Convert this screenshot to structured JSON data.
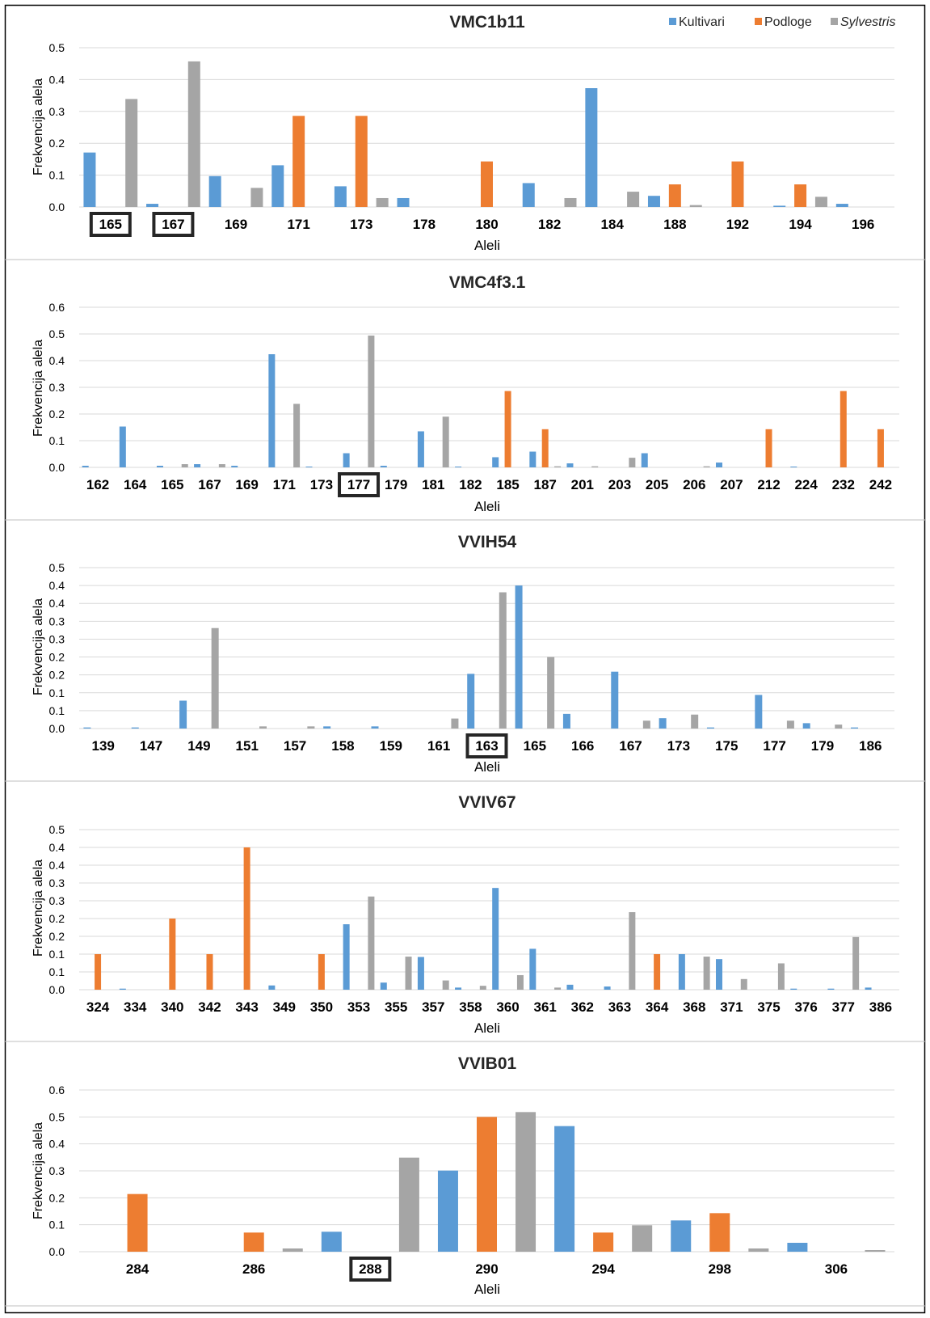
{
  "colors": {
    "Kultivari": "#5b9bd5",
    "Podloge": "#ed7d31",
    "Sylvestris": "#a5a5a5",
    "grid": "#d9d9d9",
    "frame": "#000000",
    "separator": "#bfbfbf",
    "highlight_box": "#262626"
  },
  "legend": {
    "placement": "top-right",
    "items": [
      {
        "label": "Kultivari",
        "italic": false,
        "color_key": "Kultivari"
      },
      {
        "label": "Podloge",
        "italic": false,
        "color_key": "Podloge"
      },
      {
        "label": "Sylvestris",
        "italic": true,
        "color_key": "Sylvestris"
      }
    ]
  },
  "chart_data": [
    {
      "type": "bar",
      "title": "VMC1b11",
      "xlabel": "Aleli",
      "ylabel": "Frekvencija alela",
      "yticks": [
        "0.0",
        "0.1",
        "0.2",
        "0.3",
        "0.4",
        "0.5"
      ],
      "ylim": [
        0,
        0.5
      ],
      "grid": true,
      "categories": [
        "165",
        "167",
        "169",
        "171",
        "173",
        "178",
        "180",
        "182",
        "184",
        "188",
        "192",
        "194",
        "196"
      ],
      "highlighted_categories": [
        "165",
        "167"
      ],
      "series": [
        {
          "name": "Kultivari",
          "values": [
            0.171,
            0.01,
            0.097,
            0.131,
            0.065,
            0.028,
            0,
            0.075,
            0.373,
            0.035,
            0,
            0.004,
            0.01
          ]
        },
        {
          "name": "Podloge",
          "values": [
            0,
            0,
            0,
            0.286,
            0.286,
            0,
            0.143,
            0,
            0,
            0.071,
            0.143,
            0.071,
            0
          ]
        },
        {
          "name": "Sylvestris",
          "values": [
            0.339,
            0.457,
            0.06,
            0,
            0.028,
            0,
            0,
            0.028,
            0.048,
            0.006,
            0,
            0.032,
            0
          ]
        }
      ]
    },
    {
      "type": "bar",
      "title": "VMC4f3.1",
      "xlabel": "Aleli",
      "ylabel": "Frekvencija alela",
      "yticks": [
        "0.0",
        "0.1",
        "0.2",
        "0.3",
        "0.4",
        "0.5",
        "0.6"
      ],
      "ylim": [
        0,
        0.6
      ],
      "grid": true,
      "categories": [
        "162",
        "164",
        "165",
        "167",
        "169",
        "171",
        "173",
        "177",
        "179",
        "181",
        "182",
        "185",
        "187",
        "201",
        "203",
        "205",
        "206",
        "207",
        "212",
        "224",
        "232",
        "242"
      ],
      "highlighted_categories": [
        "177"
      ],
      "series": [
        {
          "name": "Kultivari",
          "values": [
            0.006,
            0.153,
            0.006,
            0.012,
            0.006,
            0.424,
            0.003,
            0.053,
            0.006,
            0.135,
            0.003,
            0.038,
            0.059,
            0.015,
            0,
            0.053,
            0,
            0.018,
            0,
            0.003,
            0,
            0
          ]
        },
        {
          "name": "Podloge",
          "values": [
            0,
            0,
            0,
            0,
            0,
            0,
            0,
            0,
            0,
            0,
            0,
            0.286,
            0.143,
            0,
            0,
            0,
            0,
            0,
            0.143,
            0,
            0.286,
            0.143
          ]
        },
        {
          "name": "Sylvestris",
          "values": [
            0,
            0,
            0.012,
            0.012,
            0,
            0.238,
            0,
            0.494,
            0,
            0.19,
            0,
            0,
            0.004,
            0.004,
            0.036,
            0,
            0.004,
            0,
            0,
            0,
            0,
            0
          ]
        }
      ]
    },
    {
      "type": "bar",
      "title": "VVIH54",
      "xlabel": "Aleli",
      "ylabel": "Frekvencija alela",
      "yticks": [
        "0.0",
        "0.1",
        "0.1",
        "0.2",
        "0.2",
        "0.3",
        "0.3",
        "0.4",
        "0.4",
        "0.5"
      ],
      "ylim": [
        0,
        0.45
      ],
      "grid": true,
      "categories": [
        "139",
        "147",
        "149",
        "151",
        "157",
        "158",
        "159",
        "161",
        "163",
        "165",
        "166",
        "167",
        "173",
        "175",
        "177",
        "179",
        "186"
      ],
      "highlighted_categories": [
        "163"
      ],
      "series": [
        {
          "name": "Kultivari",
          "values": [
            0.003,
            0.003,
            0.078,
            0,
            0,
            0.006,
            0.006,
            0,
            0.153,
            0.4,
            0.041,
            0.159,
            0.029,
            0.003,
            0.094,
            0.015,
            0.003
          ]
        },
        {
          "name": "Podloge",
          "values": [
            0,
            0,
            0,
            0,
            0,
            0,
            0,
            0,
            0,
            0,
            0,
            0,
            0,
            0,
            0,
            0,
            0
          ]
        },
        {
          "name": "Sylvestris",
          "values": [
            0,
            0,
            0.281,
            0.006,
            0.006,
            0,
            0,
            0.028,
            0.381,
            0.2,
            0,
            0.022,
            0.039,
            0,
            0.022,
            0.011,
            0
          ]
        }
      ]
    },
    {
      "type": "bar",
      "title": "VVIV67",
      "xlabel": "Aleli",
      "ylabel": "Frekvencija alela",
      "yticks": [
        "0.0",
        "0.1",
        "0.1",
        "0.2",
        "0.2",
        "0.3",
        "0.3",
        "0.4",
        "0.4",
        "0.5"
      ],
      "ylim": [
        0,
        0.45
      ],
      "grid": true,
      "categories": [
        "324",
        "334",
        "340",
        "342",
        "343",
        "349",
        "350",
        "353",
        "355",
        "357",
        "358",
        "360",
        "361",
        "362",
        "363",
        "364",
        "368",
        "371",
        "375",
        "376",
        "377",
        "386"
      ],
      "highlighted_categories": [],
      "series": [
        {
          "name": "Kultivari",
          "values": [
            0,
            0.003,
            0,
            0,
            0,
            0.012,
            0,
            0.184,
            0.02,
            0.092,
            0.006,
            0.286,
            0.115,
            0.014,
            0.009,
            0,
            0.1,
            0.086,
            0,
            0.003,
            0.003,
            0.006
          ]
        },
        {
          "name": "Podloge",
          "values": [
            0.1,
            0,
            0.2,
            0.1,
            0.4,
            0,
            0.1,
            0,
            0,
            0,
            0,
            0,
            0,
            0,
            0,
            0.1,
            0,
            0,
            0,
            0,
            0,
            0
          ]
        },
        {
          "name": "Sylvestris",
          "values": [
            0,
            0,
            0,
            0,
            0,
            0,
            0,
            0.262,
            0.093,
            0.026,
            0.011,
            0.041,
            0.006,
            0,
            0.218,
            0,
            0.093,
            0.03,
            0.074,
            0,
            0.148,
            0
          ]
        }
      ]
    },
    {
      "type": "bar",
      "title": "VVIB01",
      "xlabel": "Aleli",
      "ylabel": "Frekvencija alela",
      "yticks": [
        "0.0",
        "0.1",
        "0.2",
        "0.3",
        "0.4",
        "0.5",
        "0.6"
      ],
      "ylim": [
        0,
        0.6
      ],
      "grid": true,
      "categories": [
        "284",
        "286",
        "288",
        "290",
        "294",
        "298",
        "306"
      ],
      "highlighted_categories": [
        "288"
      ],
      "series": [
        {
          "name": "Kultivari",
          "values": [
            0,
            0,
            0.074,
            0.301,
            0.466,
            0.116,
            0.033
          ]
        },
        {
          "name": "Podloge",
          "values": [
            0.214,
            0.071,
            0,
            0.5,
            0.071,
            0.143,
            0
          ]
        },
        {
          "name": "Sylvestris",
          "values": [
            0,
            0.012,
            0.349,
            0.518,
            0.098,
            0.012,
            0.006
          ]
        }
      ]
    }
  ]
}
